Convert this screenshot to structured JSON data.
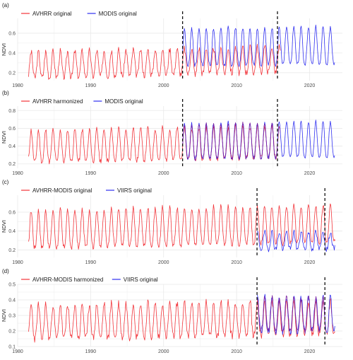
{
  "figure": {
    "colors": {
      "red": "#f2343a",
      "blue": "#3030f0",
      "purple": "#7a1fa0",
      "grid": "#e9e9e9"
    }
  },
  "chart_data": [
    {
      "type": "line",
      "panel_label": "(a)",
      "ylabel": "NDVI",
      "xlim": [
        1980,
        2024.5
      ],
      "ylim": [
        0.12,
        0.75
      ],
      "xticks": [
        1980,
        1990,
        2000,
        2010,
        2020
      ],
      "yticks": [
        0.2,
        0.4,
        0.6
      ],
      "vlines": [
        2002.6,
        2015.6
      ],
      "legend_position": "top-left",
      "series": [
        {
          "name": "AVHRR original",
          "color": "red",
          "start": 1981.5,
          "end": 2016.0,
          "base": 0.15,
          "amp": 0.26,
          "trend": 0.06,
          "phase": 0.1,
          "seed": 3,
          "noise": 0.035
        },
        {
          "name": "MODIS original",
          "color": "blue",
          "start": 2002.6,
          "end": 2023.5,
          "base": 0.27,
          "amp": 0.38,
          "trend": 0.02,
          "phase": 0.1,
          "seed": 7,
          "noise": 0.02
        }
      ]
    },
    {
      "type": "line",
      "panel_label": "(b)",
      "ylabel": "NDVI",
      "xlim": [
        1980,
        2024.5
      ],
      "ylim": [
        0.15,
        0.85
      ],
      "xticks": [
        1980,
        1990,
        2000,
        2010,
        2020
      ],
      "yticks": [
        0.2,
        0.4,
        0.6,
        0.8
      ],
      "vlines": [
        2002.6,
        2015.6
      ],
      "legend_position": "top-left",
      "series": [
        {
          "name": "AVHRR harmonized",
          "color": "red",
          "start": 1981.5,
          "end": 2016.0,
          "base": 0.22,
          "amp": 0.36,
          "trend": 0.05,
          "phase": 0.1,
          "seed": 11,
          "noise": 0.03
        },
        {
          "name": "MODIS original",
          "color": "blue",
          "start": 2002.6,
          "end": 2023.5,
          "base": 0.26,
          "amp": 0.4,
          "trend": 0.02,
          "phase": 0.1,
          "seed": 7,
          "noise": 0.02
        },
        {
          "name": "",
          "color": "purple",
          "start": 2002.6,
          "end": 2015.6,
          "base": 0.25,
          "amp": 0.39,
          "trend": 0.02,
          "phase": 0.1,
          "seed": 13,
          "noise": 0.02,
          "legend": false
        }
      ]
    },
    {
      "type": "line",
      "panel_label": "(c)",
      "ylabel": "NDVI",
      "xlim": [
        1980,
        2024.5
      ],
      "ylim": [
        0.12,
        0.78
      ],
      "xticks": [
        1980,
        1990,
        2000,
        2010,
        2020
      ],
      "yticks": [
        0.2,
        0.4,
        0.6
      ],
      "vlines": [
        2012.8,
        2022.1
      ],
      "legend_position": "top-left",
      "series": [
        {
          "name": "AVHRR-MODIS original",
          "color": "red",
          "start": 1981.5,
          "end": 2023.5,
          "base": 0.22,
          "amp": 0.4,
          "trend": 0.06,
          "phase": 0.1,
          "seed": 17,
          "noise": 0.03
        },
        {
          "name": "VIIRS original",
          "color": "blue",
          "start": 2012.8,
          "end": 2023.5,
          "base": 0.21,
          "amp": 0.18,
          "trend": 0.0,
          "phase": 0.1,
          "seed": 19,
          "noise": 0.03
        }
      ]
    },
    {
      "type": "line",
      "panel_label": "(d)",
      "ylabel": "NDVI",
      "xlim": [
        1980,
        2024.5
      ],
      "ylim": [
        0.1,
        0.5
      ],
      "xticks": [
        1980,
        1990,
        2000,
        2010,
        2020
      ],
      "yticks": [
        0.1,
        0.2,
        0.3,
        0.4,
        0.5
      ],
      "vlines": [
        2012.8,
        2022.1
      ],
      "legend_position": "top-left",
      "series": [
        {
          "name": "AVHRR-MODIS harmonized",
          "color": "red",
          "start": 1981.5,
          "end": 2023.5,
          "base": 0.15,
          "amp": 0.22,
          "trend": 0.03,
          "phase": 0.1,
          "seed": 23,
          "noise": 0.025
        },
        {
          "name": "VIIRS original",
          "color": "blue",
          "start": 2012.8,
          "end": 2023.5,
          "base": 0.2,
          "amp": 0.22,
          "trend": 0.0,
          "phase": 0.1,
          "seed": 29,
          "noise": 0.025
        },
        {
          "name": "",
          "color": "purple",
          "start": 2012.8,
          "end": 2022.1,
          "base": 0.2,
          "amp": 0.22,
          "trend": 0.0,
          "phase": 0.1,
          "seed": 31,
          "noise": 0.02,
          "legend": false
        }
      ]
    }
  ]
}
